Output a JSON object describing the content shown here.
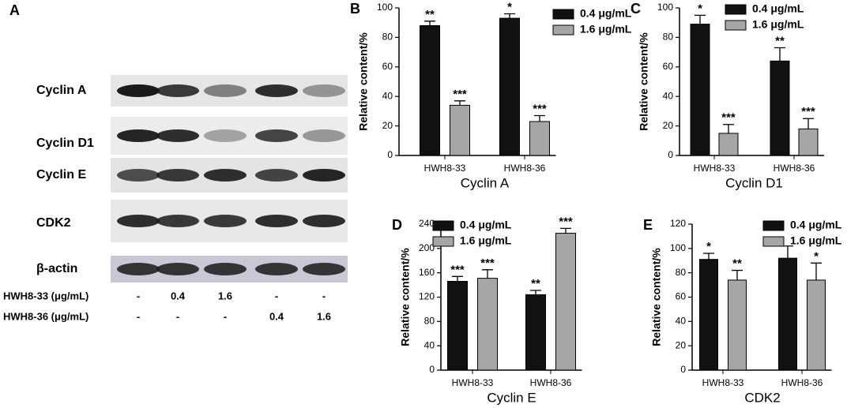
{
  "blot": {
    "panel": "A",
    "proteins": [
      "Cyclin A",
      "Cyclin D1",
      "Cyclin E",
      "CDK2",
      "β-actin"
    ],
    "treatments": [
      {
        "name": "HWH8-33 (μg/mL)",
        "lanes": [
          "-",
          "0.4",
          "1.6",
          "-",
          "-"
        ]
      },
      {
        "name": "HWH8-36 (μg/mL)",
        "lanes": [
          "-",
          "-",
          "-",
          "0.4",
          "1.6"
        ]
      }
    ]
  },
  "chart_data": [
    {
      "type": "bar",
      "panel": "B",
      "xlabel": "Cyclin A",
      "ylabel": "Relative content/%",
      "categories": [
        "HWH8-33",
        "HWH8-36"
      ],
      "ylim": [
        0,
        100
      ],
      "yticks": [
        0,
        20,
        40,
        60,
        80,
        100
      ],
      "series": [
        {
          "name": "0.4 μg/mL",
          "color": "#111111",
          "values": [
            88,
            93
          ],
          "errors": [
            3,
            3
          ],
          "labels": [
            "**",
            "*"
          ]
        },
        {
          "name": "1.6 μg/mL",
          "color": "#a6a6a6",
          "values": [
            34,
            23
          ],
          "errors": [
            3,
            4
          ],
          "labels": [
            "***",
            "***"
          ]
        }
      ]
    },
    {
      "type": "bar",
      "panel": "C",
      "xlabel": "Cyclin D1",
      "ylabel": "Relative content/%",
      "categories": [
        "HWH8-33",
        "HWH8-36"
      ],
      "ylim": [
        0,
        100
      ],
      "yticks": [
        0,
        20,
        40,
        60,
        80,
        100
      ],
      "series": [
        {
          "name": "0.4 μg/mL",
          "color": "#111111",
          "values": [
            89,
            64
          ],
          "errors": [
            6,
            9
          ],
          "labels": [
            "*",
            "**"
          ]
        },
        {
          "name": "1.6 μg/mL",
          "color": "#a6a6a6",
          "values": [
            15,
            18
          ],
          "errors": [
            6,
            7
          ],
          "labels": [
            "***",
            "***"
          ]
        }
      ]
    },
    {
      "type": "bar",
      "panel": "D",
      "xlabel": "Cyclin E",
      "ylabel": "Relative content/%",
      "categories": [
        "HWH8-33",
        "HWH8-36"
      ],
      "ylim": [
        0,
        240
      ],
      "yticks": [
        0,
        40,
        80,
        120,
        160,
        200,
        240
      ],
      "series": [
        {
          "name": "0.4 μg/mL",
          "color": "#111111",
          "values": [
            146,
            124
          ],
          "errors": [
            8,
            7
          ],
          "labels": [
            "***",
            "**"
          ]
        },
        {
          "name": "1.6 μg/mL",
          "color": "#a6a6a6",
          "values": [
            151,
            225
          ],
          "errors": [
            14,
            8
          ],
          "labels": [
            "***",
            "***"
          ]
        }
      ]
    },
    {
      "type": "bar",
      "panel": "E",
      "xlabel": "CDK2",
      "ylabel": "Relative content/%",
      "categories": [
        "HWH8-33",
        "HWH8-36"
      ],
      "ylim": [
        0,
        120
      ],
      "yticks": [
        0,
        20,
        40,
        60,
        80,
        100,
        120
      ],
      "series": [
        {
          "name": "0.4 μg/mL",
          "color": "#111111",
          "values": [
            91,
            92
          ],
          "errors": [
            5,
            10
          ],
          "labels": [
            "*",
            null
          ]
        },
        {
          "name": "1.6 μg/mL",
          "color": "#a6a6a6",
          "values": [
            74,
            74
          ],
          "errors": [
            8,
            14
          ],
          "labels": [
            "**",
            "*"
          ]
        }
      ]
    }
  ]
}
